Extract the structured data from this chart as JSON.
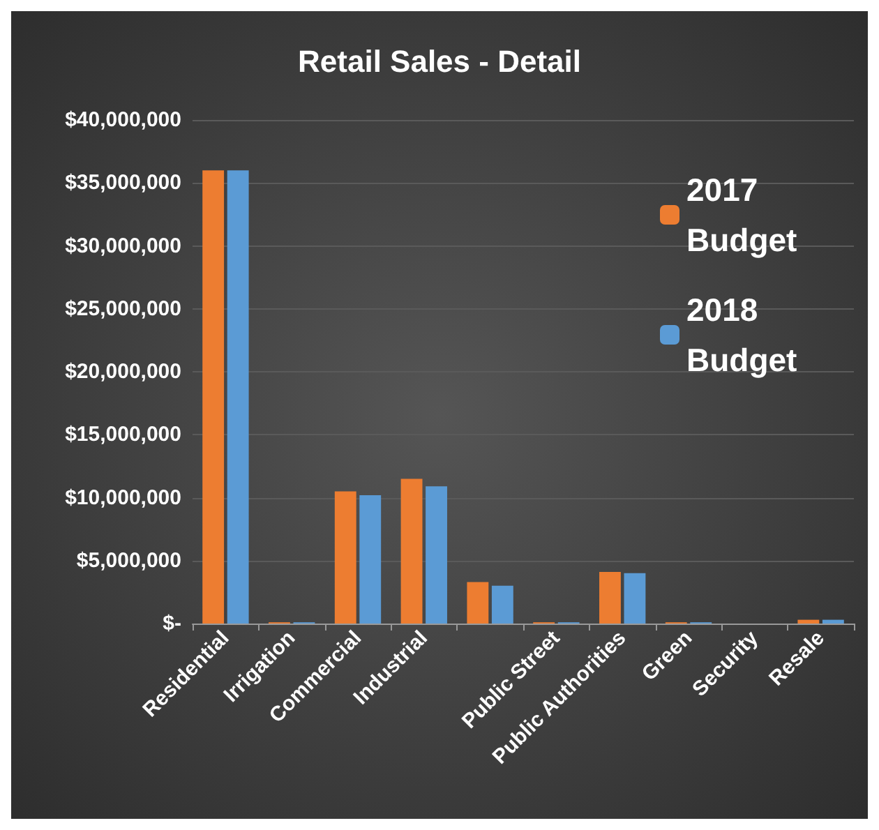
{
  "chart_data": {
    "type": "bar",
    "title": "Retail Sales - Detail",
    "categories": [
      "Residential",
      "Irrigation",
      "Commercial",
      "Industrial",
      null,
      "Public Street",
      "Public Authorities",
      "Green",
      "Security",
      "Resale"
    ],
    "series": [
      {
        "name": "2017 Budget",
        "color": "#ed7d31",
        "values": [
          36000000,
          100000,
          10500000,
          11500000,
          3300000,
          100000,
          4100000,
          100000,
          0,
          300000
        ]
      },
      {
        "name": "2018 Budget",
        "color": "#5b9bd5",
        "values": [
          36000000,
          100000,
          10200000,
          10900000,
          3000000,
          100000,
          4000000,
          100000,
          0,
          300000
        ]
      }
    ],
    "ylim": [
      0,
      40000000
    ],
    "yticks": [
      {
        "value": 0,
        "label": "$-"
      },
      {
        "value": 5000000,
        "label": "$5,000,000"
      },
      {
        "value": 10000000,
        "label": "$10,000,000"
      },
      {
        "value": 15000000,
        "label": "$15,000,000"
      },
      {
        "value": 20000000,
        "label": "$20,000,000"
      },
      {
        "value": 25000000,
        "label": "$25,000,000"
      },
      {
        "value": 30000000,
        "label": "$30,000,000"
      },
      {
        "value": 35000000,
        "label": "$35,000,000"
      },
      {
        "value": 40000000,
        "label": "$40,000,000"
      }
    ],
    "grid": "y",
    "legend": "top right"
  }
}
